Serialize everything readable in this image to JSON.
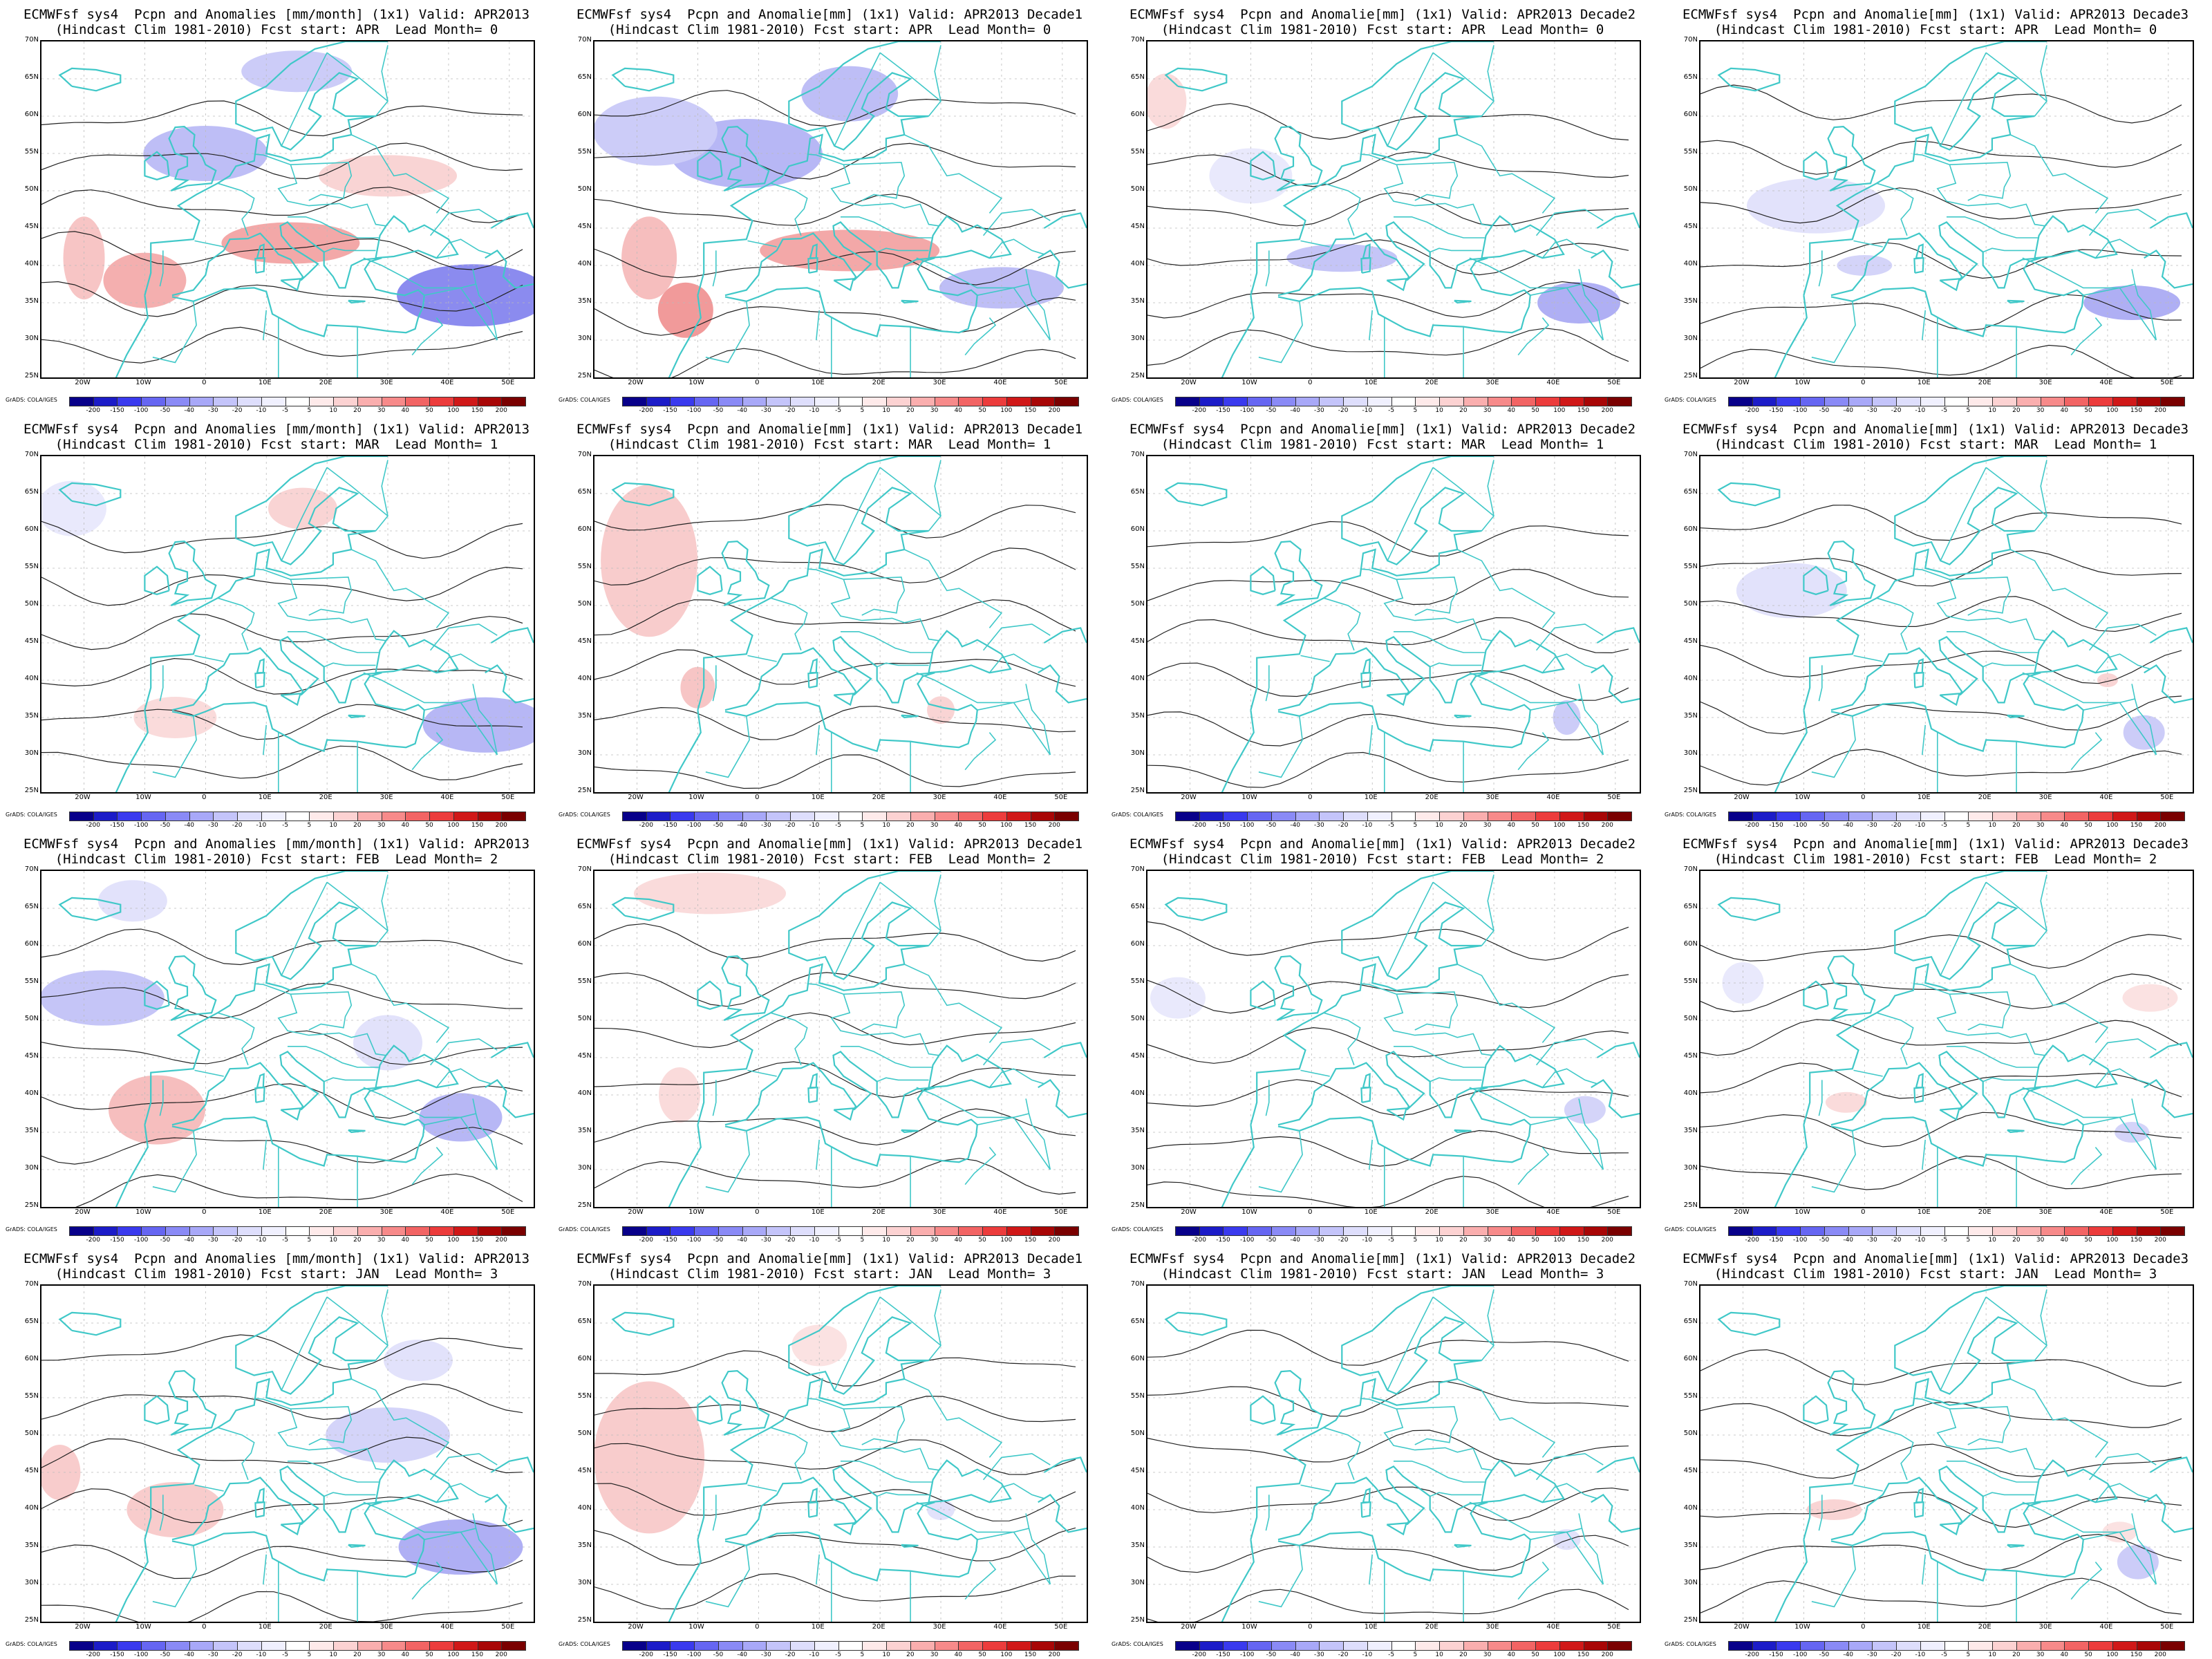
{
  "panels": [
    {
      "title1": "ECMWFsf sys4  Pcpn and Anomalies [mm/month] (1x1) Valid: APR2013",
      "title2": "(Hindcast Clim 1981-2010) Fcst start: APR  Lead Month= 0"
    },
    {
      "title1": "ECMWFsf sys4  Pcpn and Anomalie[mm] (1x1) Valid: APR2013 Decade1",
      "title2": "(Hindcast Clim 1981-2010) Fcst start: APR  Lead Month= 0"
    },
    {
      "title1": "ECMWFsf sys4  Pcpn and Anomalie[mm] (1x1) Valid: APR2013 Decade2",
      "title2": "(Hindcast Clim 1981-2010) Fcst start: APR  Lead Month= 0"
    },
    {
      "title1": "ECMWFsf sys4  Pcpn and Anomalie[mm] (1x1) Valid: APR2013 Decade3",
      "title2": "(Hindcast Clim 1981-2010) Fcst start: APR  Lead Month= 0"
    },
    {
      "title1": "ECMWFsf sys4  Pcpn and Anomalies [mm/month] (1x1) Valid: APR2013",
      "title2": "(Hindcast Clim 1981-2010) Fcst start: MAR  Lead Month= 1"
    },
    {
      "title1": "ECMWFsf sys4  Pcpn and Anomalie[mm] (1x1) Valid: APR2013 Decade1",
      "title2": "(Hindcast Clim 1981-2010) Fcst start: MAR  Lead Month= 1"
    },
    {
      "title1": "ECMWFsf sys4  Pcpn and Anomalie[mm] (1x1) Valid: APR2013 Decade2",
      "title2": "(Hindcast Clim 1981-2010) Fcst start: MAR  Lead Month= 1"
    },
    {
      "title1": "ECMWFsf sys4  Pcpn and Anomalie[mm] (1x1) Valid: APR2013 Decade3",
      "title2": "(Hindcast Clim 1981-2010) Fcst start: MAR  Lead Month= 1"
    },
    {
      "title1": "ECMWFsf sys4  Pcpn and Anomalies [mm/month] (1x1) Valid: APR2013",
      "title2": "(Hindcast Clim 1981-2010) Fcst start: FEB  Lead Month= 2"
    },
    {
      "title1": "ECMWFsf sys4  Pcpn and Anomalie[mm] (1x1) Valid: APR2013 Decade1",
      "title2": "(Hindcast Clim 1981-2010) Fcst start: FEB  Lead Month= 2"
    },
    {
      "title1": "ECMWFsf sys4  Pcpn and Anomalie[mm] (1x1) Valid: APR2013 Decade2",
      "title2": "(Hindcast Clim 1981-2010) Fcst start: FEB  Lead Month= 2"
    },
    {
      "title1": "ECMWFsf sys4  Pcpn and Anomalie[mm] (1x1) Valid: APR2013 Decade3",
      "title2": "(Hindcast Clim 1981-2010) Fcst start: FEB  Lead Month= 2"
    },
    {
      "title1": "ECMWFsf sys4  Pcpn and Anomalies [mm/month] (1x1) Valid: APR2013",
      "title2": "(Hindcast Clim 1981-2010) Fcst start: JAN  Lead Month= 3"
    },
    {
      "title1": "ECMWFsf sys4  Pcpn and Anomalie[mm] (1x1) Valid: APR2013 Decade1",
      "title2": "(Hindcast Clim 1981-2010) Fcst start: JAN  Lead Month= 3"
    },
    {
      "title1": "ECMWFsf sys4  Pcpn and Anomalie[mm] (1x1) Valid: APR2013 Decade2",
      "title2": "(Hindcast Clim 1981-2010) Fcst start: JAN  Lead Month= 3"
    },
    {
      "title1": "ECMWFsf sys4  Pcpn and Anomalie[mm] (1x1) Valid: APR2013 Decade3",
      "title2": "(Hindcast Clim 1981-2010) Fcst start: JAN  Lead Month= 3"
    }
  ],
  "lat_labels": [
    "70N",
    "65N",
    "60N",
    "55N",
    "50N",
    "45N",
    "40N",
    "35N",
    "30N",
    "25N"
  ],
  "lon_labels": [
    "20W",
    "10W",
    "0",
    "10E",
    "20E",
    "30E",
    "40E",
    "50E"
  ],
  "credit": "GrADS: COLA/IGES",
  "colorbar": {
    "labels": [
      "-200",
      "-150",
      "-100",
      "-50",
      "-40",
      "-30",
      "-20",
      "-10",
      "-5",
      "5",
      "10",
      "20",
      "30",
      "40",
      "50",
      "100",
      "150",
      "200"
    ],
    "colors": [
      "#08008a",
      "#1c1cc8",
      "#3a3aee",
      "#6666f2",
      "#8a8af6",
      "#a8a8f8",
      "#c4c4fa",
      "#dedefc",
      "#f0f0fe",
      "#ffffff",
      "#feeaea",
      "#fcd2d2",
      "#faaeae",
      "#f78a8a",
      "#f26464",
      "#ec3c3c",
      "#d01818",
      "#a80606",
      "#7a0000"
    ]
  },
  "colors": {
    "coast": "#40c8c8",
    "contour": "#222222",
    "grid": "#bbbbbb",
    "anom_neg": "#7777ee",
    "anom_pos": "#ee7777"
  }
}
